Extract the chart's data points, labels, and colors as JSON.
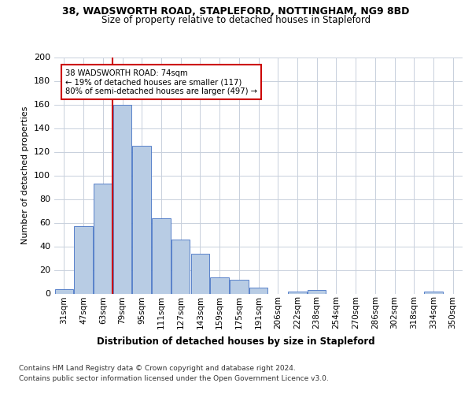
{
  "title1": "38, WADSWORTH ROAD, STAPLEFORD, NOTTINGHAM, NG9 8BD",
  "title2": "Size of property relative to detached houses in Stapleford",
  "xlabel": "Distribution of detached houses by size in Stapleford",
  "ylabel": "Number of detached properties",
  "categories": [
    "31sqm",
    "47sqm",
    "63sqm",
    "79sqm",
    "95sqm",
    "111sqm",
    "127sqm",
    "143sqm",
    "159sqm",
    "175sqm",
    "191sqm",
    "206sqm",
    "222sqm",
    "238sqm",
    "254sqm",
    "270sqm",
    "286sqm",
    "302sqm",
    "318sqm",
    "334sqm",
    "350sqm"
  ],
  "values": [
    4,
    57,
    93,
    160,
    125,
    64,
    46,
    34,
    14,
    12,
    5,
    0,
    2,
    3,
    0,
    0,
    0,
    0,
    0,
    2,
    0
  ],
  "bar_color": "#b8cce4",
  "bar_edge_color": "#4472c4",
  "vline_color": "#cc0000",
  "annotation_text": "38 WADSWORTH ROAD: 74sqm\n← 19% of detached houses are smaller (117)\n80% of semi-detached houses are larger (497) →",
  "annotation_box_color": "#ffffff",
  "annotation_box_edge": "#cc0000",
  "ylim": [
    0,
    200
  ],
  "yticks": [
    0,
    20,
    40,
    60,
    80,
    100,
    120,
    140,
    160,
    180,
    200
  ],
  "footer1": "Contains HM Land Registry data © Crown copyright and database right 2024.",
  "footer2": "Contains public sector information licensed under the Open Government Licence v3.0.",
  "bg_color": "#ffffff",
  "grid_color": "#c8d0dc"
}
